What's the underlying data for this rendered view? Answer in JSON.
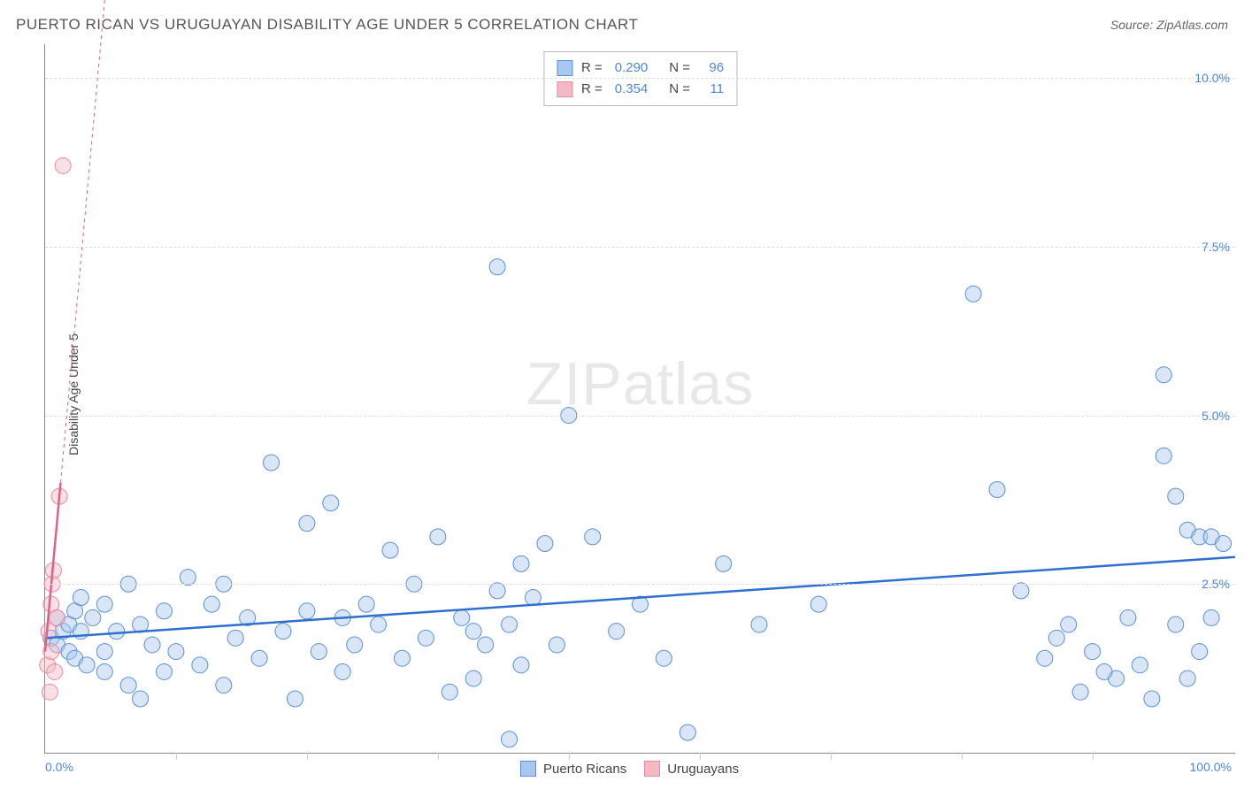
{
  "header": {
    "title": "PUERTO RICAN VS URUGUAYAN DISABILITY AGE UNDER 5 CORRELATION CHART",
    "source": "Source: ZipAtlas.com"
  },
  "y_axis_label": "Disability Age Under 5",
  "watermark": {
    "zip": "ZIP",
    "atlas": "atlas"
  },
  "chart": {
    "type": "scatter",
    "background_color": "#ffffff",
    "grid_color": "#dddddd",
    "axis_color": "#888888",
    "x_min": 0,
    "x_max": 100,
    "y_min": 0,
    "y_max": 10.5,
    "y_ticks": [
      2.5,
      5.0,
      7.5,
      10.0
    ],
    "y_tick_labels": [
      "2.5%",
      "5.0%",
      "7.5%",
      "10.0%"
    ],
    "x_min_label": "0.0%",
    "x_max_label": "100.0%",
    "x_ticks_minor": [
      11,
      22,
      33,
      44,
      55,
      66,
      77,
      88
    ],
    "marker_radius": 9,
    "marker_opacity": 0.45,
    "series": {
      "puerto_ricans": {
        "label": "Puerto Ricans",
        "fill_color": "#a8c8f0",
        "stroke_color": "#5a8fd8",
        "trend_color": "#2e6fd0",
        "trend_start": [
          0,
          1.7
        ],
        "trend_end": [
          100,
          2.9
        ],
        "points": [
          [
            0.5,
            1.7
          ],
          [
            1,
            1.6
          ],
          [
            1,
            2.0
          ],
          [
            1.5,
            1.8
          ],
          [
            2,
            1.9
          ],
          [
            2,
            1.5
          ],
          [
            2.5,
            2.1
          ],
          [
            2.5,
            1.4
          ],
          [
            3,
            2.3
          ],
          [
            3,
            1.8
          ],
          [
            3.5,
            1.3
          ],
          [
            4,
            2.0
          ],
          [
            5,
            2.2
          ],
          [
            5,
            1.5
          ],
          [
            5,
            1.2
          ],
          [
            6,
            1.8
          ],
          [
            7,
            2.5
          ],
          [
            7,
            1.0
          ],
          [
            8,
            0.8
          ],
          [
            8,
            1.9
          ],
          [
            9,
            1.6
          ],
          [
            10,
            2.1
          ],
          [
            10,
            1.2
          ],
          [
            11,
            1.5
          ],
          [
            12,
            2.6
          ],
          [
            13,
            1.3
          ],
          [
            14,
            2.2
          ],
          [
            15,
            1.0
          ],
          [
            15,
            2.5
          ],
          [
            16,
            1.7
          ],
          [
            17,
            2.0
          ],
          [
            18,
            1.4
          ],
          [
            19,
            4.3
          ],
          [
            20,
            1.8
          ],
          [
            21,
            0.8
          ],
          [
            22,
            2.1
          ],
          [
            22,
            3.4
          ],
          [
            23,
            1.5
          ],
          [
            24,
            3.7
          ],
          [
            25,
            2.0
          ],
          [
            25,
            1.2
          ],
          [
            26,
            1.6
          ],
          [
            27,
            2.2
          ],
          [
            28,
            1.9
          ],
          [
            29,
            3.0
          ],
          [
            30,
            1.4
          ],
          [
            31,
            2.5
          ],
          [
            32,
            1.7
          ],
          [
            33,
            3.2
          ],
          [
            34,
            0.9
          ],
          [
            35,
            2.0
          ],
          [
            36,
            1.1
          ],
          [
            37,
            1.6
          ],
          [
            38,
            7.2
          ],
          [
            39,
            1.9
          ],
          [
            39,
            0.2
          ],
          [
            40,
            2.8
          ],
          [
            40,
            1.3
          ],
          [
            41,
            2.3
          ],
          [
            42,
            3.1
          ],
          [
            43,
            1.6
          ],
          [
            44,
            5.0
          ],
          [
            46,
            3.2
          ],
          [
            48,
            1.8
          ],
          [
            50,
            2.2
          ],
          [
            52,
            1.4
          ],
          [
            54,
            0.3
          ],
          [
            57,
            2.8
          ],
          [
            60,
            1.9
          ],
          [
            65,
            2.2
          ],
          [
            78,
            6.8
          ],
          [
            80,
            3.9
          ],
          [
            82,
            2.4
          ],
          [
            85,
            1.7
          ],
          [
            87,
            0.9
          ],
          [
            88,
            1.5
          ],
          [
            90,
            1.1
          ],
          [
            91,
            2.0
          ],
          [
            92,
            1.3
          ],
          [
            93,
            0.8
          ],
          [
            94,
            5.6
          ],
          [
            94,
            4.4
          ],
          [
            95,
            3.8
          ],
          [
            95,
            1.9
          ],
          [
            96,
            3.3
          ],
          [
            96,
            1.1
          ],
          [
            97,
            3.2
          ],
          [
            97,
            1.5
          ],
          [
            98,
            3.2
          ],
          [
            98,
            2.0
          ],
          [
            99,
            3.1
          ],
          [
            89,
            1.2
          ],
          [
            86,
            1.9
          ],
          [
            84,
            1.4
          ],
          [
            38,
            2.4
          ],
          [
            36,
            1.8
          ]
        ]
      },
      "uruguayans": {
        "label": "Uruguayans",
        "fill_color": "#f5b8c5",
        "stroke_color": "#e88ba0",
        "trend_color": "#e06088",
        "trend_start": [
          0,
          1.5
        ],
        "trend_end": [
          1.3,
          4.0
        ],
        "trend_dashed_end": [
          7,
          15
        ],
        "points": [
          [
            0.2,
            1.3
          ],
          [
            0.3,
            1.8
          ],
          [
            0.4,
            0.9
          ],
          [
            0.5,
            1.5
          ],
          [
            0.5,
            2.2
          ],
          [
            0.6,
            2.5
          ],
          [
            0.7,
            2.7
          ],
          [
            0.8,
            1.2
          ],
          [
            1.0,
            2.0
          ],
          [
            1.2,
            3.8
          ],
          [
            1.5,
            8.7
          ]
        ]
      }
    }
  },
  "legend_box": {
    "rows": [
      {
        "swatch": "puerto_ricans",
        "r_label": "R =",
        "r_val": "0.290",
        "n_label": "N =",
        "n_val": "96"
      },
      {
        "swatch": "uruguayans",
        "r_label": "R =",
        "r_val": "0.354",
        "n_label": "N =",
        "n_val": "11"
      }
    ]
  },
  "bottom_legend": {
    "items": [
      {
        "swatch": "puerto_ricans",
        "label": "Puerto Ricans"
      },
      {
        "swatch": "uruguayans",
        "label": "Uruguayans"
      }
    ]
  }
}
